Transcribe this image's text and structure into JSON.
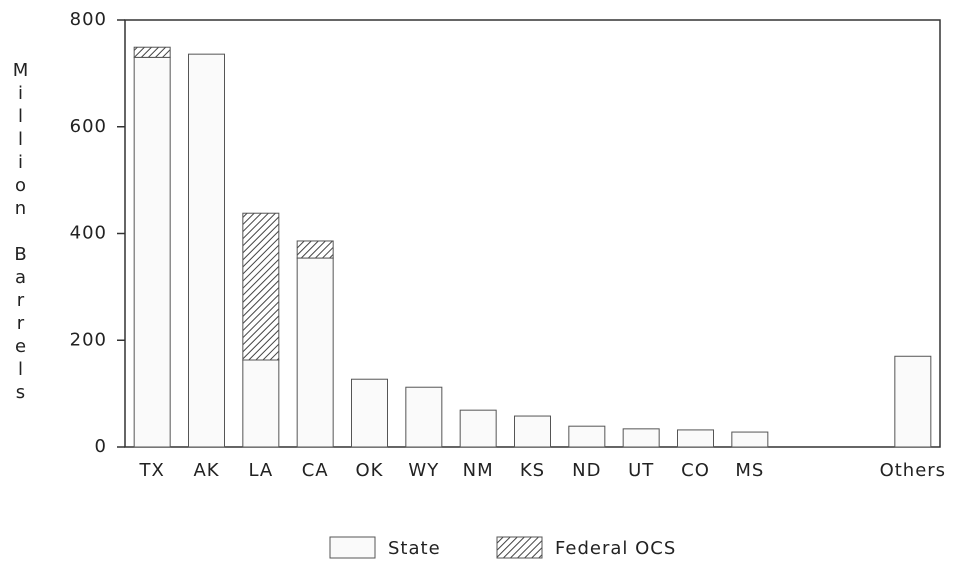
{
  "chart_data": {
    "type": "stacked_bar",
    "ylabel": "Million Barrels",
    "categories": [
      "TX",
      "AK",
      "LA",
      "CA",
      "OK",
      "WY",
      "NM",
      "KS",
      "ND",
      "UT",
      "CO",
      "MS",
      null,
      null,
      "Others"
    ],
    "series": [
      {
        "name": "State",
        "color": "#fafafa",
        "values": [
          730,
          736,
          163,
          354,
          127,
          112,
          69,
          58,
          39,
          34,
          32,
          28,
          null,
          null,
          170
        ]
      },
      {
        "name": "Federal OCS",
        "color": "#444444",
        "pattern": "hatch",
        "values": [
          19,
          0,
          275,
          32,
          0,
          0,
          0,
          0,
          0,
          0,
          0,
          0,
          null,
          null,
          0
        ]
      }
    ],
    "ylim": [
      0,
      800
    ],
    "yticks": [
      0,
      200,
      400,
      600,
      800
    ],
    "grid": false,
    "legend": "bottom"
  }
}
